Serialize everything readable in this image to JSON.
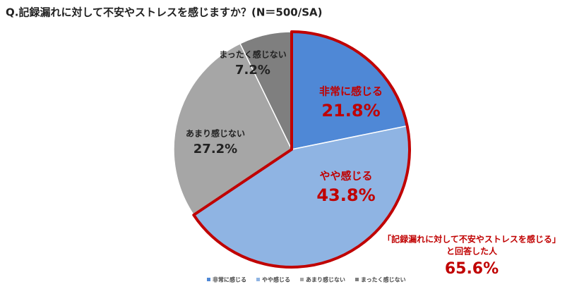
{
  "chart_data": {
    "type": "pie",
    "title": "Q.記録漏れに対して不安やストレスを感じますか？(N＝500/SA)",
    "categories": [
      "非常に感じる",
      "やや感じる",
      "あまり感じない",
      "まったく感じない"
    ],
    "values": [
      21.8,
      43.8,
      27.2,
      7.2
    ],
    "value_labels": [
      "21.8%",
      "43.8%",
      "27.2%",
      "7.2%"
    ],
    "colors": [
      "#4f88d6",
      "#8fb4e3",
      "#a6a6a6",
      "#7f7f7f"
    ],
    "highlight": [
      0,
      1
    ],
    "highlight_color": "#c00000",
    "legend": "bottom",
    "annotation": {
      "lines": [
        "「記録漏れに対して不安やストレスを感じる」",
        "と回答した人"
      ],
      "value": 65.6,
      "value_label": "65.6%"
    }
  }
}
